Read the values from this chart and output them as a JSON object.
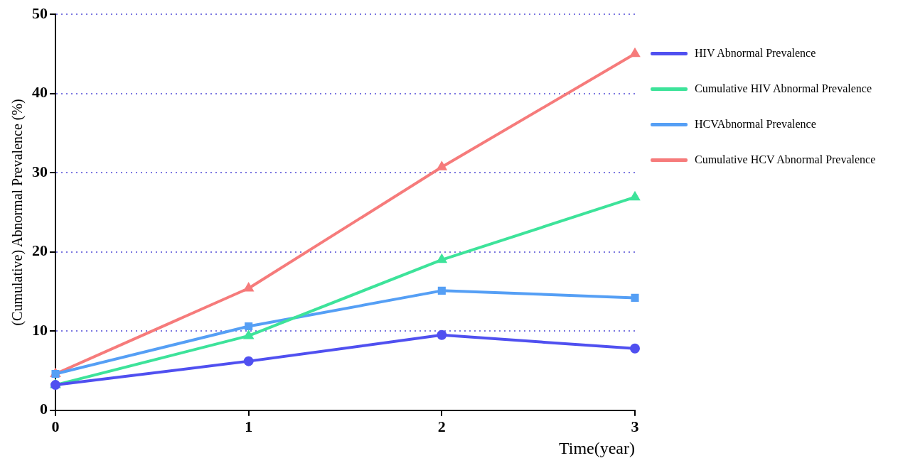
{
  "chart_data": {
    "type": "line",
    "xlabel": "Time(year)",
    "ylabel": "(Cumulative) Abnormal Prevalence (%)",
    "x": [
      0,
      1,
      2,
      3
    ],
    "xlim": [
      0,
      3
    ],
    "xticks": [
      0,
      1,
      2,
      3
    ],
    "ylim": [
      0,
      50
    ],
    "yticks": [
      0,
      10,
      20,
      30,
      40,
      50
    ],
    "grid": "y",
    "legend": "top right",
    "line_style": "solid",
    "series": [
      {
        "name": "HIV Abnormal Prevalence",
        "color": "#5050f0",
        "marker": "circle",
        "values": [
          3.2,
          6.2,
          9.5,
          7.8
        ]
      },
      {
        "name": "Cumulative HIV Abnormal Prevalence",
        "color": "#3de39a",
        "marker": "triangle",
        "values": [
          3.2,
          9.4,
          19.0,
          26.9
        ]
      },
      {
        "name": "HCVAbnormal Prevalence",
        "color": "#559ff5",
        "marker": "square",
        "values": [
          4.6,
          10.6,
          15.1,
          14.2
        ]
      },
      {
        "name": "Cumulative HCV Abnormal Prevalence",
        "color": "#f67b7b",
        "marker": "triangle",
        "values": [
          4.6,
          15.4,
          30.7,
          45.0
        ]
      }
    ]
  }
}
